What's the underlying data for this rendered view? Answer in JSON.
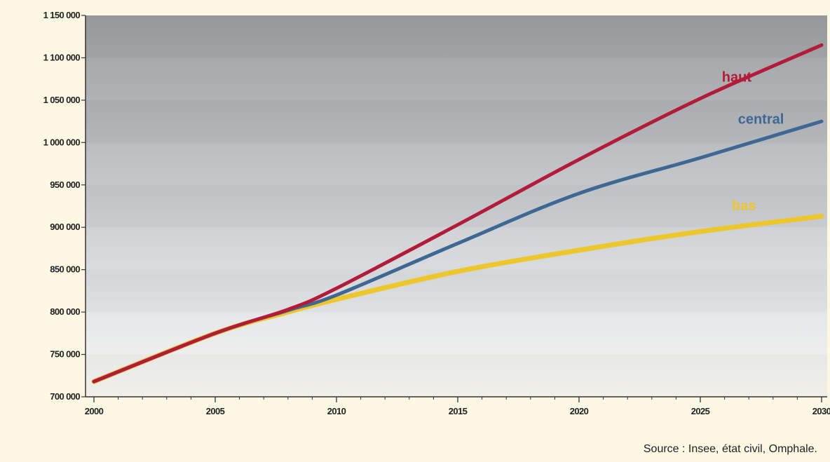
{
  "chart_data": {
    "type": "line",
    "x": [
      2000,
      2005,
      2008,
      2010,
      2015,
      2020,
      2025,
      2030
    ],
    "series": [
      {
        "name": "haut",
        "color": "#b31b3a",
        "values": [
          718000,
          775000,
          803000,
          828000,
          903000,
          980000,
          1052000,
          1115000
        ]
      },
      {
        "name": "central",
        "color": "#3e6893",
        "values": [
          718000,
          775000,
          802000,
          820000,
          881000,
          940000,
          982000,
          1025000
        ]
      },
      {
        "name": "bas",
        "color": "#ecc62b",
        "values": [
          718000,
          775000,
          800000,
          815000,
          848000,
          873000,
          895000,
          913000
        ]
      }
    ],
    "xlim": [
      2000,
      2030
    ],
    "ylim": [
      700000,
      1150000
    ],
    "xticks": [
      "2000",
      "2005",
      "2010",
      "2015",
      "2020",
      "2025",
      "2030"
    ],
    "yticks": [
      "700 000",
      "750 000",
      "800 000",
      "850 000",
      "900 000",
      "950 000",
      "1 000 000",
      "1 050 000",
      "1 100 000",
      "1 150 000"
    ],
    "ytick_values": [
      700000,
      750000,
      800000,
      850000,
      900000,
      950000,
      1000000,
      1050000,
      1100000,
      1150000
    ],
    "xtick_values": [
      2000,
      2005,
      2010,
      2015,
      2020,
      2025,
      2030
    ],
    "grid": false,
    "legend": "inline labels at line ends",
    "source": "Source : Insee, état civil, Omphale.",
    "colors": {
      "background": "#fdf8e4",
      "plot_top": "#9a9c9e",
      "plot_bottom": "#f6f5ef"
    }
  }
}
